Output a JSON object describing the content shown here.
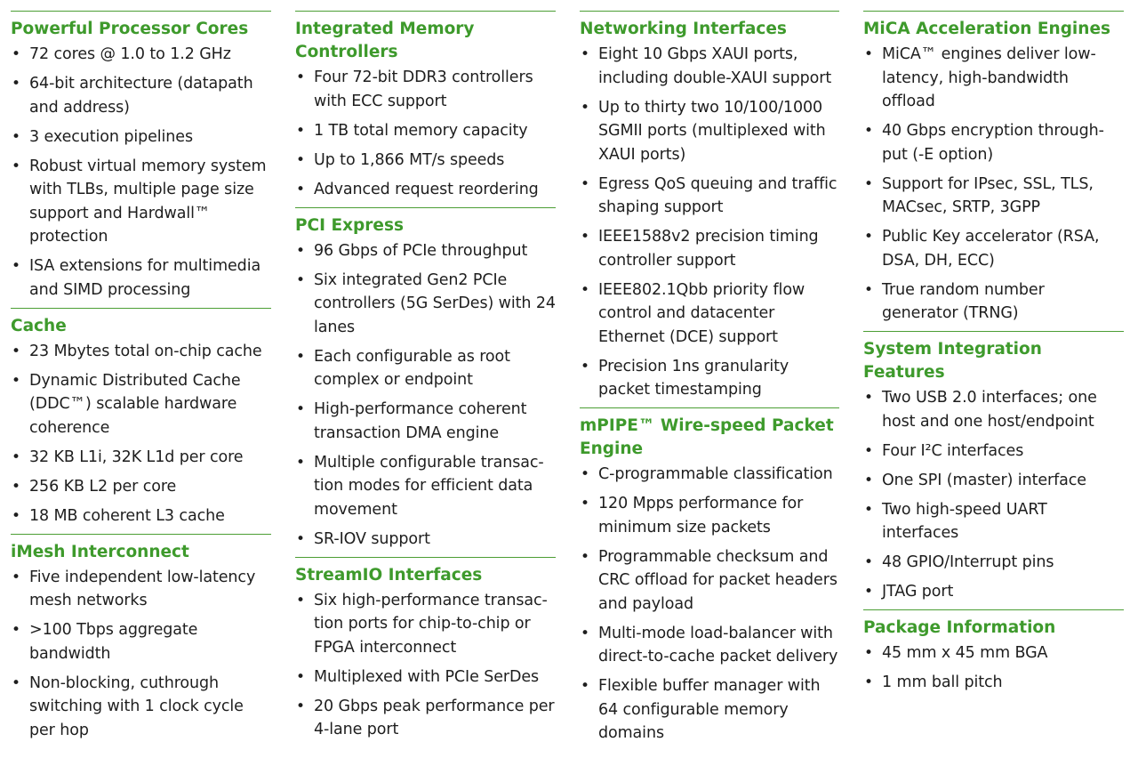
{
  "columns": [
    {
      "sections": [
        {
          "title": "Powerful Processor Cores",
          "items": [
            "72 cores @ 1.0 to 1.2 GHz",
            "64-bit architecture (datapath and address)",
            "3 execution pipelines",
            "Robust virtual memory system with TLBs, multiple page size support and Hardwall™ protection",
            "ISA extensions for multimedia and SIMD processing"
          ]
        },
        {
          "title": "Cache",
          "items": [
            "23 Mbytes total on-chip cache",
            "Dynamic Distributed Cache (DDC™) scalable hardware coherence",
            "32 KB L1i, 32K L1d per core",
            "256 KB L2 per core",
            "18 MB coherent L3 cache"
          ]
        },
        {
          "title": "iMesh Interconnect",
          "items": [
            "Five independent low-latency mesh networks",
            ">100 Tbps aggregate bandwidth",
            "Non-blocking, cuthrough switching with 1 clock cycle per hop"
          ]
        }
      ]
    },
    {
      "sections": [
        {
          "title": "Integrated Memory Controllers",
          "items": [
            "Four 72-bit DDR3 controllers with ECC support",
            "1 TB total memory capacity",
            "Up to 1,866 MT/s speeds",
            "Advanced request reordering"
          ]
        },
        {
          "title": "PCI Express",
          "items": [
            "96 Gbps of PCIe throughput",
            "Six integrated Gen2 PCIe controllers (5G SerDes) with 24 lanes",
            "Each configurable as root complex or endpoint",
            "High-performance coherent transaction DMA engine",
            "Multiple configurable transac-tion modes for efficient data movement",
            "SR-IOV support"
          ]
        },
        {
          "title": "StreamIO Interfaces",
          "items": [
            "Six high-performance transac-tion ports for chip-to-chip or FPGA interconnect",
            "Multiplexed with PCIe SerDes",
            "20 Gbps peak performance per 4-lane port"
          ]
        }
      ]
    },
    {
      "sections": [
        {
          "title": "Networking Interfaces",
          "items": [
            "Eight 10 Gbps XAUI ports, including double-XAUI support",
            "Up to thirty two 10/100/1000 SGMII ports (multiplexed with XAUI ports)",
            "Egress QoS queuing and traffic shaping support",
            "IEEE1588v2 precision timing controller support",
            "IEEE802.1Qbb priority flow control and datacenter Ethernet (DCE) support",
            "Precision 1ns granularity packet timestamping"
          ]
        },
        {
          "title": "mPIPE™ Wire-speed Packet Engine",
          "items": [
            "C-programmable classification",
            "120 Mpps performance for minimum size packets",
            "Programmable checksum and CRC offload for packet headers and payload",
            "Multi-mode load-balancer with direct-to-cache packet delivery",
            "Flexible buffer manager with 64 configurable memory domains"
          ]
        }
      ]
    },
    {
      "sections": [
        {
          "title": "MiCA Acceleration Engines",
          "items": [
            "MiCA™ engines deliver low-latency, high-bandwidth offload",
            "40 Gbps encryption through-put  (-E option)",
            "Support for IPsec, SSL, TLS, MACsec, SRTP, 3GPP",
            "Public Key accelerator (RSA, DSA, DH, ECC)",
            " True random number generator (TRNG)"
          ]
        },
        {
          "title": "System Integration Features",
          "items": [
            "Two USB 2.0 interfaces; one host and one host/endpoint",
            "Four I²C interfaces",
            "One SPI (master) interface",
            "Two high-speed UART interfaces",
            "48 GPIO/Interrupt pins",
            "JTAG port"
          ]
        },
        {
          "title": "Package Information",
          "items": [
            "45 mm x 45 mm BGA",
            "1 mm ball pitch"
          ]
        }
      ]
    }
  ]
}
